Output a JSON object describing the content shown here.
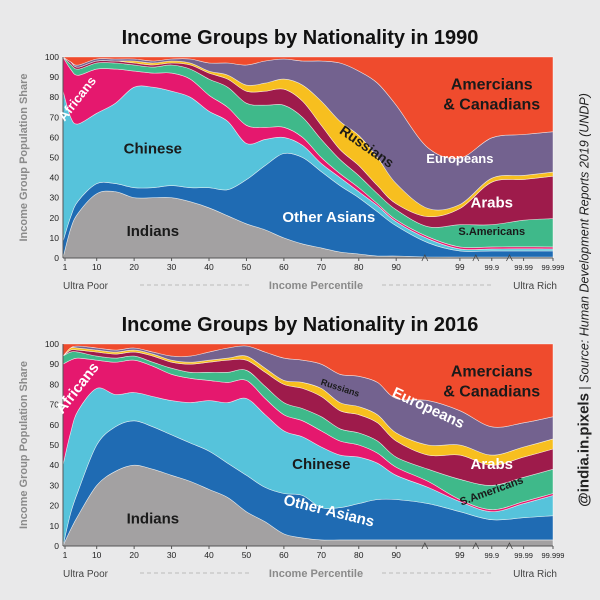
{
  "colors": {
    "background": "#e9e9ea",
    "Indians": "#a3a1a2",
    "Other Asians": "#1f6bb3",
    "Chinese": "#56c3db",
    "Africans": "#e5186e",
    "S.Americans": "#3fb98a",
    "Arabs": "#9e1b4b",
    "Russians": "#f7bf1f",
    "Europeans": "#73628f",
    "Amercians & Canadians": "#ef4b2d",
    "pre": "#cfc52f",
    "outline": "#ffffff"
  },
  "series_order": [
    "Indians",
    "Other Asians",
    "Chinese",
    "Africans",
    "S.Americans",
    "Arabs",
    "Russians",
    "Europeans",
    "Amercians & Canadians"
  ],
  "side_text": {
    "handle": "@india.in.pixels",
    "separator": "|",
    "source": "Source: Human Development Reports 2019 (UNDP)"
  },
  "chart_data": [
    {
      "type": "area",
      "title": "Income Groups by Nationality in 1990",
      "ylabel": "Income Group Population Share",
      "xlabel": "Income Percentile",
      "x_left_label": "Ultra Poor",
      "x_right_label": "Ultra Rich",
      "ylim": [
        0,
        100
      ],
      "yticks": [
        "0",
        "10",
        "20",
        "30",
        "40",
        "50",
        "60",
        "70",
        "80",
        "90",
        "100"
      ],
      "xticks": [
        "1",
        "10",
        "20",
        "30",
        "40",
        "50",
        "60",
        "70",
        "80",
        "90",
        "99",
        "99.9",
        "99.99",
        "99.999"
      ],
      "x": [
        1,
        3,
        5,
        10,
        15,
        20,
        25,
        30,
        35,
        40,
        45,
        50,
        55,
        60,
        65,
        70,
        75,
        80,
        85,
        90,
        95,
        99,
        99.9,
        99.99,
        99.999
      ],
      "series": [
        {
          "name": "Indians",
          "values": [
            0,
            12,
            22,
            32,
            33,
            30,
            30,
            30,
            28,
            25,
            21,
            17,
            14,
            10,
            7,
            5,
            3,
            2,
            1,
            1,
            0.5,
            0.5,
            0.5,
            0.5,
            0.5
          ]
        },
        {
          "name": "Other Asians",
          "values": [
            5,
            5,
            6,
            5,
            4,
            5,
            5,
            6,
            7,
            10,
            13,
            22,
            32,
            42,
            43,
            38,
            33,
            28,
            22,
            15,
            7,
            3,
            3,
            3,
            3
          ]
        },
        {
          "name": "Chinese",
          "values": [
            45,
            42,
            38,
            35,
            40,
            50,
            50,
            47,
            45,
            38,
            34,
            18,
            13,
            8,
            6,
            4,
            4,
            3,
            3,
            2,
            2,
            1,
            1,
            1,
            1
          ]
        },
        {
          "name": "Africans",
          "values": [
            10,
            20,
            24,
            22,
            17,
            8,
            7,
            9,
            9,
            8,
            7,
            9,
            6,
            5,
            4,
            3,
            2,
            2,
            1,
            1,
            1,
            1,
            1,
            1,
            1
          ]
        },
        {
          "name": "S.Americans",
          "values": [
            0,
            2,
            3,
            3,
            3,
            3,
            3,
            4,
            5,
            8,
            10,
            11,
            11,
            11,
            10,
            9,
            7,
            6,
            5,
            5,
            5,
            11,
            11,
            13,
            14
          ]
        },
        {
          "name": "Arabs",
          "values": [
            0,
            1,
            1,
            1,
            1,
            1,
            1,
            1,
            2,
            3,
            4,
            6,
            7,
            8,
            8,
            7,
            5,
            5,
            4,
            3,
            5,
            8,
            21,
            20,
            21
          ]
        },
        {
          "name": "Russians",
          "values": [
            0,
            0,
            0,
            0,
            0,
            1,
            1,
            1,
            1,
            1,
            2,
            3,
            4,
            5,
            8,
            12,
            14,
            15,
            14,
            10,
            4,
            2,
            2,
            2,
            2
          ]
        },
        {
          "name": "Europeans",
          "values": [
            0,
            0,
            1,
            1,
            1,
            1,
            1,
            1,
            2,
            4,
            6,
            10,
            11,
            10,
            12,
            20,
            29,
            32,
            37,
            39,
            30,
            23,
            20,
            20,
            20
          ]
        },
        {
          "name": "Amercians & Canadians",
          "values": [
            0,
            2,
            4,
            1,
            1,
            1,
            2,
            1,
            1,
            3,
            3,
            4,
            2,
            1,
            2,
            2,
            3,
            7,
            13,
            24,
            45,
            50,
            40,
            38,
            37
          ]
        }
      ],
      "annotations": [
        {
          "text": "Africans",
          "series": "Africans",
          "x": 5,
          "y": 79
        },
        {
          "text": "Chinese",
          "series": "Chinese",
          "x": 25,
          "y": 54
        },
        {
          "text": "Indians",
          "series": "Indians",
          "x": 25,
          "y": 13
        },
        {
          "text": "Other Asians",
          "series": "Other Asians",
          "x": 72,
          "y": 20
        },
        {
          "text": "Russians",
          "series": "Russians",
          "x": 82,
          "y": 55
        },
        {
          "text": "Europeans",
          "series": "Europeans",
          "x": 99,
          "y": 49
        },
        {
          "text": "Amercians",
          "series": "Amercians & Canadians",
          "x": 99.9,
          "y": 86
        },
        {
          "text": "& Canadians",
          "series": "Amercians & Canadians",
          "x": 99.9,
          "y": 76
        },
        {
          "text": "Arabs",
          "series": "Arabs",
          "x": 99.9,
          "y": 27
        },
        {
          "text": "S.Americans",
          "series": "S.Americans",
          "x": 99.9,
          "y": 13
        }
      ]
    },
    {
      "type": "area",
      "title": "Income Groups by Nationality in 2016",
      "ylabel": "Income Group Population Share",
      "xlabel": "Income Percentile",
      "x_left_label": "Ultra Poor",
      "x_right_label": "Ultra Rich",
      "ylim": [
        0,
        100
      ],
      "yticks": [
        "0",
        "10",
        "20",
        "30",
        "40",
        "50",
        "60",
        "70",
        "80",
        "90",
        "100"
      ],
      "xticks": [
        "1",
        "10",
        "20",
        "30",
        "40",
        "50",
        "60",
        "70",
        "80",
        "90",
        "99",
        "99.9",
        "99.99",
        "99.999"
      ],
      "x": [
        1,
        3,
        5,
        10,
        15,
        20,
        25,
        30,
        35,
        40,
        45,
        50,
        55,
        60,
        65,
        70,
        75,
        80,
        85,
        90,
        95,
        99,
        99.9,
        99.99,
        99.999
      ],
      "series": [
        {
          "name": "Indians",
          "values": [
            0,
            8,
            15,
            30,
            37,
            40,
            38,
            35,
            32,
            28,
            24,
            17,
            12,
            6,
            4,
            3,
            3,
            3,
            3,
            3,
            3,
            3,
            3,
            3,
            3
          ]
        },
        {
          "name": "Other Asians",
          "values": [
            0,
            8,
            12,
            20,
            22,
            22,
            21,
            20,
            19,
            19,
            17,
            18,
            17,
            20,
            21,
            16,
            16,
            18,
            20,
            20,
            18,
            14,
            10,
            11,
            12
          ]
        },
        {
          "name": "Chinese",
          "values": [
            40,
            40,
            40,
            28,
            16,
            14,
            15,
            17,
            20,
            25,
            30,
            38,
            36,
            31,
            29,
            30,
            26,
            23,
            18,
            12,
            8,
            5,
            4,
            7,
            10
          ]
        },
        {
          "name": "Africans",
          "values": [
            50,
            36,
            26,
            14,
            16,
            16,
            15,
            13,
            12,
            10,
            10,
            9,
            8,
            8,
            8,
            8,
            7,
            6,
            5,
            4,
            3,
            1,
            1,
            1,
            1
          ]
        },
        {
          "name": "S.Americans",
          "values": [
            4,
            4,
            3,
            2,
            2,
            2,
            2,
            3,
            3,
            4,
            5,
            5,
            6,
            6,
            6,
            7,
            6,
            6,
            6,
            5,
            6,
            10,
            12,
            12,
            12
          ]
        },
        {
          "name": "Arabs",
          "values": [
            0,
            1,
            1,
            2,
            2,
            2,
            3,
            3,
            4,
            5,
            6,
            5,
            7,
            9,
            10,
            10,
            9,
            9,
            9,
            8,
            7,
            12,
            10,
            10,
            10
          ]
        },
        {
          "name": "Russians",
          "values": [
            0,
            1,
            1,
            1,
            1,
            1,
            1,
            1,
            1,
            1,
            1,
            2,
            2,
            2,
            3,
            4,
            4,
            4,
            4,
            4,
            5,
            5,
            5,
            5,
            5
          ]
        },
        {
          "name": "Europeans",
          "values": [
            0,
            0,
            1,
            1,
            1,
            1,
            1,
            2,
            3,
            4,
            5,
            5,
            8,
            11,
            11,
            12,
            14,
            15,
            16,
            17,
            22,
            17,
            14,
            12,
            11
          ]
        },
        {
          "name": "Amercians & Canadians",
          "values": [
            6,
            2,
            1,
            2,
            3,
            2,
            4,
            6,
            6,
            4,
            2,
            1,
            4,
            7,
            8,
            10,
            15,
            16,
            19,
            27,
            28,
            33,
            41,
            39,
            36
          ]
        }
      ],
      "annotations": [
        {
          "text": "Africans",
          "series": "Africans",
          "x": 5,
          "y": 78
        },
        {
          "text": "Chinese",
          "series": "Chinese",
          "x": 70,
          "y": 40
        },
        {
          "text": "Indians",
          "series": "Indians",
          "x": 25,
          "y": 13
        },
        {
          "text": "Other Asians",
          "series": "Other Asians",
          "x": 72,
          "y": 17
        },
        {
          "text": "Russians",
          "series": "Russians",
          "x": 75,
          "y": 78
        },
        {
          "text": "Europeans",
          "series": "Europeans",
          "x": 95,
          "y": 68
        },
        {
          "text": "Amercians",
          "series": "Amercians & Canadians",
          "x": 99.9,
          "y": 86
        },
        {
          "text": "& Canadians",
          "series": "Amercians & Canadians",
          "x": 99.9,
          "y": 76
        },
        {
          "text": "Arabs",
          "series": "Arabs",
          "x": 99.9,
          "y": 40
        },
        {
          "text": "S.Americans",
          "series": "S.Americans",
          "x": 99.9,
          "y": 27
        }
      ]
    }
  ]
}
